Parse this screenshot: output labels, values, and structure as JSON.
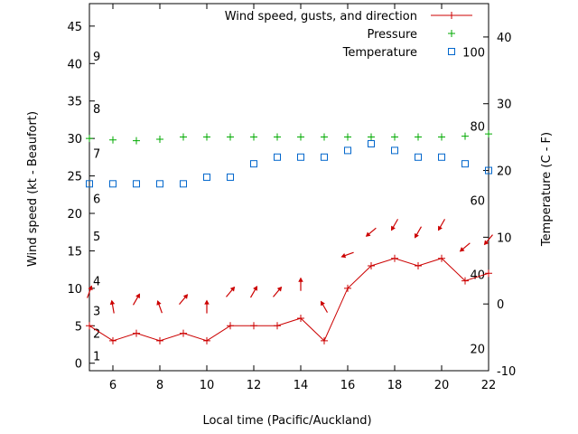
{
  "chart_data": {
    "type": "line",
    "xlabel": "Local time (Pacific/Auckland)",
    "ylabel_left": "Wind speed (kt - Beaufort)",
    "ylabel_right": "Temperature (C - F)",
    "x_range": [
      5,
      22
    ],
    "y_range_left": [
      -1,
      48
    ],
    "y_range_right": [
      -10,
      45
    ],
    "x_ticks": [
      6,
      8,
      10,
      12,
      14,
      16,
      18,
      20,
      22
    ],
    "left_ticks": [
      0,
      5,
      10,
      15,
      20,
      25,
      30,
      35,
      40,
      45
    ],
    "right_ticks": [
      -10,
      0,
      10,
      20,
      30,
      40
    ],
    "beaufort_labels": [
      {
        "value": "1",
        "at": 1
      },
      {
        "value": "2",
        "at": 4
      },
      {
        "value": "3",
        "at": 7
      },
      {
        "value": "4",
        "at": 11
      },
      {
        "value": "5",
        "at": 17
      },
      {
        "value": "6",
        "at": 22
      },
      {
        "value": "7",
        "at": 28
      },
      {
        "value": "8",
        "at": 34
      },
      {
        "value": "9",
        "at": 41
      }
    ],
    "fahrenheit_labels": [
      {
        "value": "20",
        "at": -6.67
      },
      {
        "value": "40",
        "at": 4.44
      },
      {
        "value": "60",
        "at": 15.56
      },
      {
        "value": "80",
        "at": 26.67
      },
      {
        "value": "100",
        "at": 37.78
      }
    ],
    "legend": [
      {
        "label": "Wind speed, gusts, and direction",
        "marker": "line-plus",
        "color": "#cc0000"
      },
      {
        "label": "Pressure",
        "marker": "plus",
        "color": "#00aa00"
      },
      {
        "label": "Temperature",
        "marker": "square",
        "color": "#0066cc"
      }
    ],
    "series": [
      {
        "name": "Wind speed, gusts, and direction",
        "color": "#cc0000",
        "x": [
          5,
          6,
          7,
          8,
          9,
          10,
          11,
          12,
          13,
          14,
          15,
          16,
          17,
          18,
          19,
          20,
          21,
          22
        ],
        "values": [
          5,
          3,
          4,
          3,
          4,
          3,
          5,
          5,
          5,
          6,
          3,
          10,
          13,
          14,
          13,
          14,
          11,
          12
        ],
        "direction_deg": [
          200,
          170,
          210,
          160,
          220,
          180,
          220,
          210,
          220,
          180,
          150,
          70,
          50,
          30,
          30,
          30,
          50,
          40
        ]
      },
      {
        "name": "Pressure",
        "color": "#00aa00",
        "x": [
          5,
          6,
          7,
          8,
          9,
          10,
          11,
          12,
          13,
          14,
          15,
          16,
          17,
          18,
          19,
          20,
          21,
          22
        ],
        "values": [
          30,
          29.8,
          29.7,
          29.9,
          30.2,
          30.2,
          30.2,
          30.2,
          30.2,
          30.2,
          30.2,
          30.2,
          30.2,
          30.2,
          30.2,
          30.2,
          30.3,
          30.6
        ]
      },
      {
        "name": "Temperature",
        "color": "#0066cc",
        "axis": "right",
        "x": [
          5,
          6,
          7,
          8,
          9,
          10,
          11,
          12,
          13,
          14,
          15,
          16,
          17,
          18,
          19,
          20,
          21,
          22
        ],
        "values": [
          18,
          18,
          18,
          18,
          18,
          19,
          19,
          21,
          22,
          22,
          22,
          23,
          24,
          23,
          22,
          22,
          21,
          20
        ]
      }
    ]
  }
}
